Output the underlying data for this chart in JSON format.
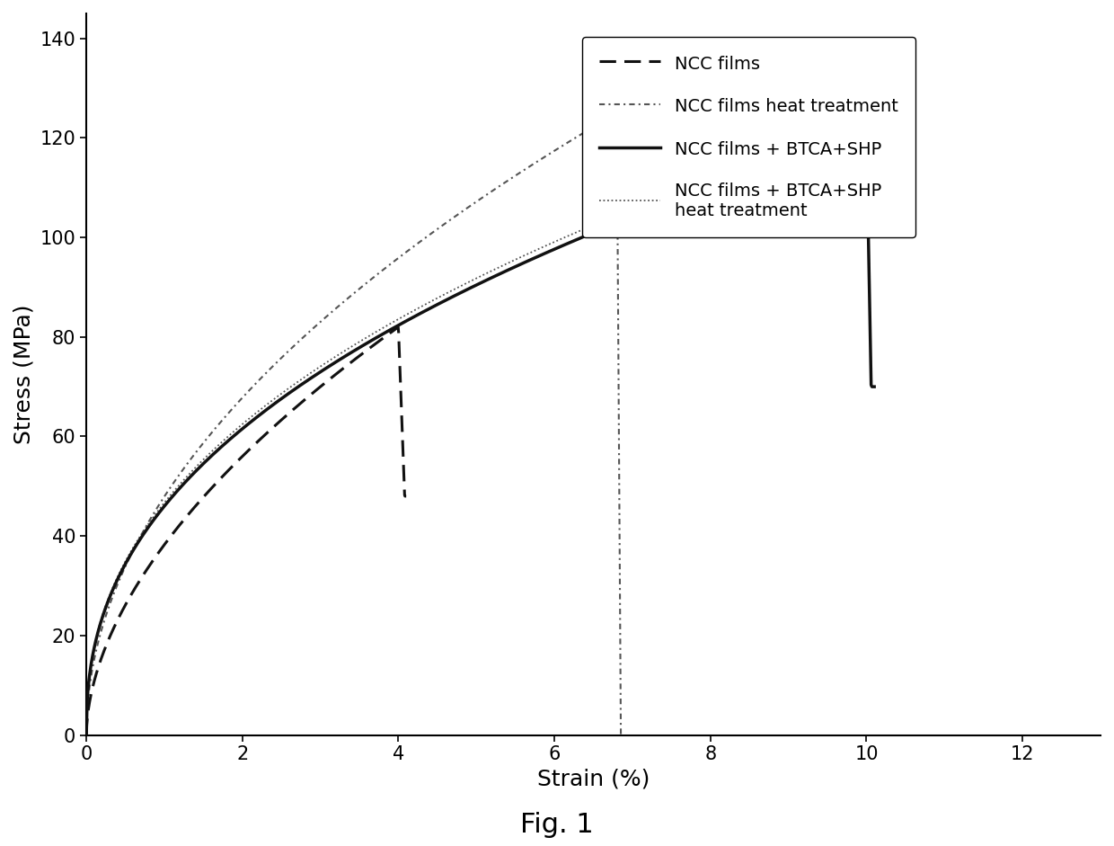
{
  "title": "",
  "xlabel": "Strain (%)",
  "ylabel": "Stress (MPa)",
  "fig_label": "Fig. 1",
  "xlim": [
    0,
    13
  ],
  "ylim": [
    0,
    145
  ],
  "xticks": [
    0,
    2,
    4,
    6,
    8,
    10,
    12
  ],
  "yticks": [
    0,
    20,
    40,
    60,
    80,
    100,
    120,
    140
  ],
  "background_color": "#ffffff",
  "legend_labels": [
    "NCC films",
    "NCC films heat treatment",
    "NCC films + BTCA+SHP",
    "NCC films + BTCA+SHP\nheat treatment"
  ]
}
